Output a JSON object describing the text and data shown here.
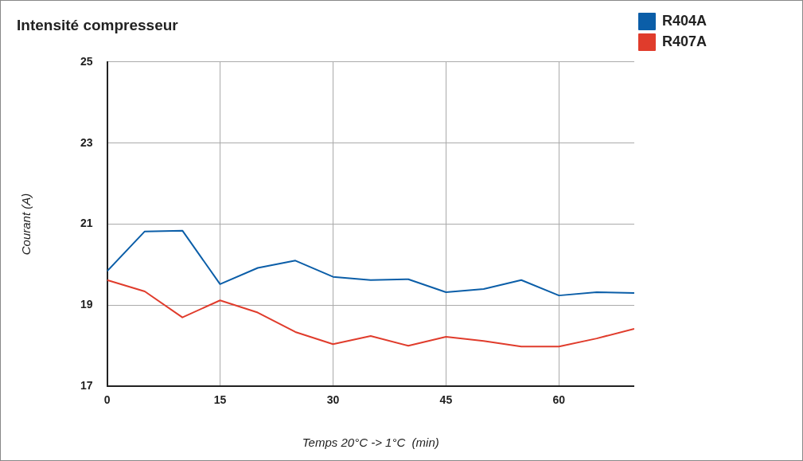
{
  "chart_data": {
    "type": "line",
    "title": "Intensité compresseur",
    "xlabel": "Temps 20°C -> 1°C  (min)",
    "ylabel": "Courant (A)",
    "x": [
      0,
      5,
      10,
      15,
      20,
      25,
      30,
      35,
      40,
      45,
      50,
      55,
      60,
      65,
      70
    ],
    "series": [
      {
        "name": "R404A",
        "color": "#0b5ea8",
        "values": [
          19.84,
          20.82,
          20.84,
          19.52,
          19.92,
          20.1,
          19.7,
          19.62,
          19.64,
          19.32,
          19.4,
          19.62,
          19.24,
          19.32,
          19.3
        ]
      },
      {
        "name": "R407A",
        "color": "#e03c2c",
        "values": [
          19.62,
          19.34,
          18.7,
          19.12,
          18.82,
          18.34,
          18.04,
          18.24,
          18.0,
          18.22,
          18.12,
          17.98,
          17.98,
          18.18,
          18.42
        ]
      }
    ],
    "xlim": [
      0,
      70
    ],
    "xticks": [
      0,
      15,
      30,
      45,
      60
    ],
    "ylim": [
      17,
      25
    ],
    "yticks": [
      17,
      19,
      21,
      23,
      25
    ],
    "grid": true,
    "legend": "top right",
    "marker": "none",
    "line_style": "solid"
  }
}
